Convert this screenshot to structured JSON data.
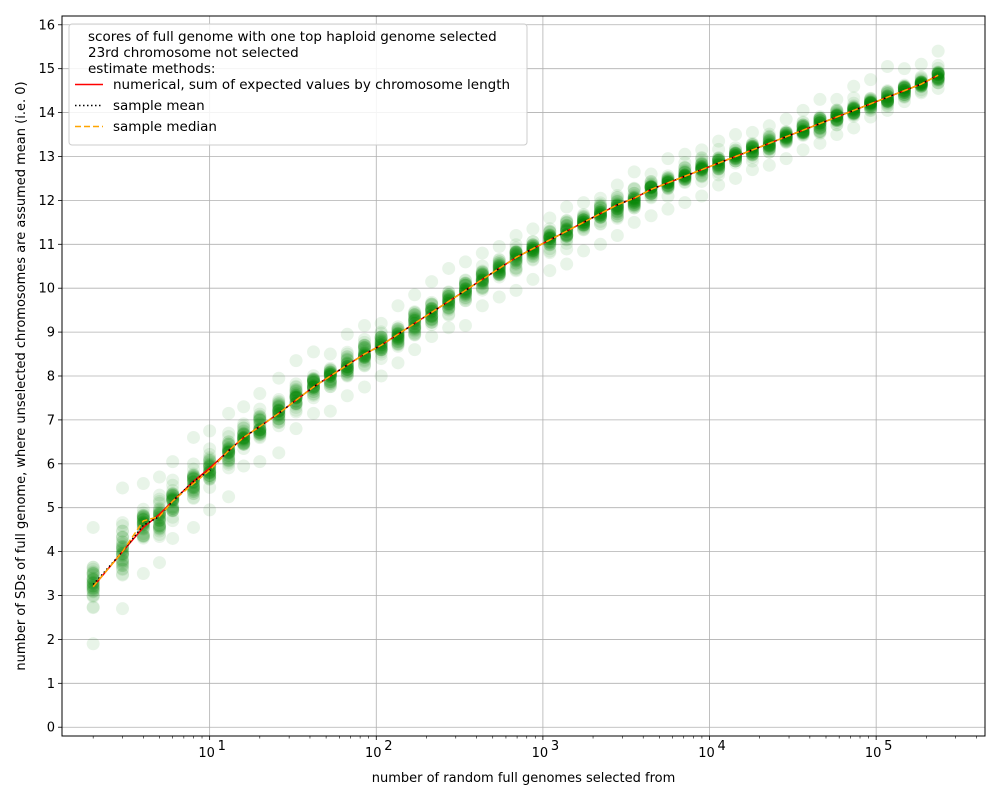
{
  "chart_data": {
    "type": "scatter",
    "xscale": "log",
    "xlabel": "number of random full genomes selected from",
    "ylabel": "number of SDs of full genome, where unselected chromosomes are assumed mean (i.e. 0)",
    "xlim": [
      1.3,
      450000
    ],
    "ylim": [
      -0.2,
      16.2
    ],
    "yticks": [
      0,
      1,
      2,
      3,
      4,
      5,
      6,
      7,
      8,
      9,
      10,
      11,
      12,
      13,
      14,
      15,
      16
    ],
    "xticks": [
      {
        "value": 10,
        "base": "10",
        "exp": "1"
      },
      {
        "value": 100,
        "base": "10",
        "exp": "2"
      },
      {
        "value": 1000,
        "base": "10",
        "exp": "3"
      },
      {
        "value": 10000,
        "base": "10",
        "exp": "4"
      },
      {
        "value": 100000,
        "base": "10",
        "exp": "5"
      }
    ],
    "grid": true,
    "legend": {
      "placement": "top-left",
      "title_lines": [
        "scores of full genome with one top haploid genome selected",
        "23rd chromosome not selected",
        "estimate methods:"
      ],
      "entries": [
        {
          "label": "numerical, sum of expected values by chromosome length",
          "color": "#ff0000",
          "style": "solid"
        },
        {
          "label": "sample mean",
          "color": "#000000",
          "style": "dotted"
        },
        {
          "label": "sample median",
          "color": "#ffa500",
          "style": "dashed"
        }
      ]
    },
    "scatter_color": "#008000",
    "x": [
      2,
      3,
      4,
      5,
      6,
      8,
      10,
      13,
      16,
      20,
      26,
      33,
      42,
      53,
      67,
      85,
      107,
      135,
      170,
      215,
      272,
      343,
      433,
      547,
      690,
      871,
      1100,
      1389,
      1754,
      2215,
      2797,
      3532,
      4460,
      5632,
      7112,
      8981,
      11341,
      14322,
      18085,
      22838,
      28840,
      36419,
      45990,
      58076,
      73338,
      92611,
      116949,
      147683,
      186494,
      235505
    ],
    "series": [
      {
        "name": "numerical, sum of expected values by chromosome length",
        "values": [
          3.2,
          4.0,
          4.55,
          4.85,
          5.15,
          5.6,
          5.9,
          6.3,
          6.6,
          6.85,
          7.15,
          7.45,
          7.75,
          8.0,
          8.25,
          8.5,
          8.7,
          8.95,
          9.2,
          9.45,
          9.7,
          9.95,
          10.2,
          10.45,
          10.7,
          10.9,
          11.1,
          11.3,
          11.5,
          11.7,
          11.9,
          12.05,
          12.25,
          12.4,
          12.55,
          12.7,
          12.85,
          13.0,
          13.15,
          13.3,
          13.45,
          13.6,
          13.75,
          13.9,
          14.05,
          14.2,
          14.35,
          14.5,
          14.65,
          14.85
        ]
      },
      {
        "name": "sample mean",
        "values": [
          3.25,
          4.0,
          4.6,
          4.8,
          5.15,
          5.6,
          5.85,
          6.3,
          6.6,
          6.85,
          7.15,
          7.45,
          7.75,
          8.0,
          8.25,
          8.5,
          8.7,
          8.95,
          9.2,
          9.45,
          9.7,
          9.95,
          10.2,
          10.45,
          10.7,
          10.9,
          11.1,
          11.3,
          11.5,
          11.7,
          11.9,
          12.05,
          12.25,
          12.4,
          12.55,
          12.7,
          12.85,
          13.0,
          13.15,
          13.3,
          13.45,
          13.6,
          13.75,
          13.9,
          14.05,
          14.2,
          14.35,
          14.5,
          14.65,
          14.85
        ]
      },
      {
        "name": "sample median",
        "values": [
          3.2,
          4.0,
          4.7,
          4.8,
          5.15,
          5.55,
          5.85,
          6.3,
          6.6,
          6.85,
          7.15,
          7.45,
          7.75,
          8.0,
          8.25,
          8.5,
          8.7,
          8.95,
          9.2,
          9.45,
          9.7,
          9.95,
          10.2,
          10.45,
          10.7,
          10.9,
          11.1,
          11.3,
          11.5,
          11.7,
          11.9,
          12.05,
          12.25,
          12.4,
          12.55,
          12.7,
          12.85,
          13.0,
          13.15,
          13.3,
          13.45,
          13.6,
          13.75,
          13.9,
          14.05,
          14.2,
          14.35,
          14.5,
          14.65,
          14.85
        ]
      }
    ],
    "scatter_spread": [
      {
        "x": 2,
        "min": 1.9,
        "max": 4.55
      },
      {
        "x": 3,
        "min": 2.7,
        "max": 5.45
      },
      {
        "x": 4,
        "min": 3.5,
        "max": 5.55
      },
      {
        "x": 5,
        "min": 3.75,
        "max": 5.7
      },
      {
        "x": 6,
        "min": 4.3,
        "max": 6.05
      },
      {
        "x": 8,
        "min": 4.55,
        "max": 6.6
      },
      {
        "x": 10,
        "min": 4.95,
        "max": 6.75
      },
      {
        "x": 13,
        "min": 5.25,
        "max": 7.15
      },
      {
        "x": 16,
        "min": 5.95,
        "max": 7.3
      },
      {
        "x": 20,
        "min": 6.05,
        "max": 7.6
      },
      {
        "x": 26,
        "min": 6.25,
        "max": 7.95
      },
      {
        "x": 33,
        "min": 6.8,
        "max": 8.35
      },
      {
        "x": 42,
        "min": 7.15,
        "max": 8.55
      },
      {
        "x": 53,
        "min": 7.2,
        "max": 8.5
      },
      {
        "x": 67,
        "min": 7.55,
        "max": 8.95
      },
      {
        "x": 85,
        "min": 7.75,
        "max": 9.15
      },
      {
        "x": 107,
        "min": 8.0,
        "max": 9.2
      },
      {
        "x": 135,
        "min": 8.3,
        "max": 9.6
      },
      {
        "x": 170,
        "min": 8.6,
        "max": 9.85
      },
      {
        "x": 215,
        "min": 8.9,
        "max": 10.15
      },
      {
        "x": 272,
        "min": 9.1,
        "max": 10.45
      },
      {
        "x": 343,
        "min": 9.15,
        "max": 10.6
      },
      {
        "x": 433,
        "min": 9.6,
        "max": 10.8
      },
      {
        "x": 547,
        "min": 9.8,
        "max": 10.95
      },
      {
        "x": 690,
        "min": 9.95,
        "max": 11.2
      },
      {
        "x": 871,
        "min": 10.2,
        "max": 11.35
      },
      {
        "x": 1100,
        "min": 10.4,
        "max": 11.6
      },
      {
        "x": 1389,
        "min": 10.55,
        "max": 11.85
      },
      {
        "x": 1754,
        "min": 10.85,
        "max": 11.95
      },
      {
        "x": 2215,
        "min": 11.0,
        "max": 12.05
      },
      {
        "x": 2797,
        "min": 11.2,
        "max": 12.35
      },
      {
        "x": 3532,
        "min": 11.5,
        "max": 12.65
      },
      {
        "x": 4460,
        "min": 11.65,
        "max": 12.6
      },
      {
        "x": 5632,
        "min": 11.8,
        "max": 12.95
      },
      {
        "x": 7112,
        "min": 11.95,
        "max": 13.05
      },
      {
        "x": 8981,
        "min": 12.1,
        "max": 13.15
      },
      {
        "x": 11341,
        "min": 12.35,
        "max": 13.35
      },
      {
        "x": 14322,
        "min": 12.5,
        "max": 13.5
      },
      {
        "x": 18085,
        "min": 12.7,
        "max": 13.55
      },
      {
        "x": 22838,
        "min": 12.8,
        "max": 13.7
      },
      {
        "x": 28840,
        "min": 12.95,
        "max": 13.85
      },
      {
        "x": 36419,
        "min": 13.15,
        "max": 14.05
      },
      {
        "x": 45990,
        "min": 13.3,
        "max": 14.3
      },
      {
        "x": 58076,
        "min": 13.5,
        "max": 14.3
      },
      {
        "x": 73338,
        "min": 13.65,
        "max": 14.6
      },
      {
        "x": 92611,
        "min": 13.9,
        "max": 14.75
      },
      {
        "x": 116949,
        "min": 14.05,
        "max": 15.05
      },
      {
        "x": 147683,
        "min": 14.25,
        "max": 15.0
      },
      {
        "x": 186494,
        "min": 14.45,
        "max": 15.1
      },
      {
        "x": 235505,
        "min": 14.55,
        "max": 15.4
      }
    ]
  }
}
